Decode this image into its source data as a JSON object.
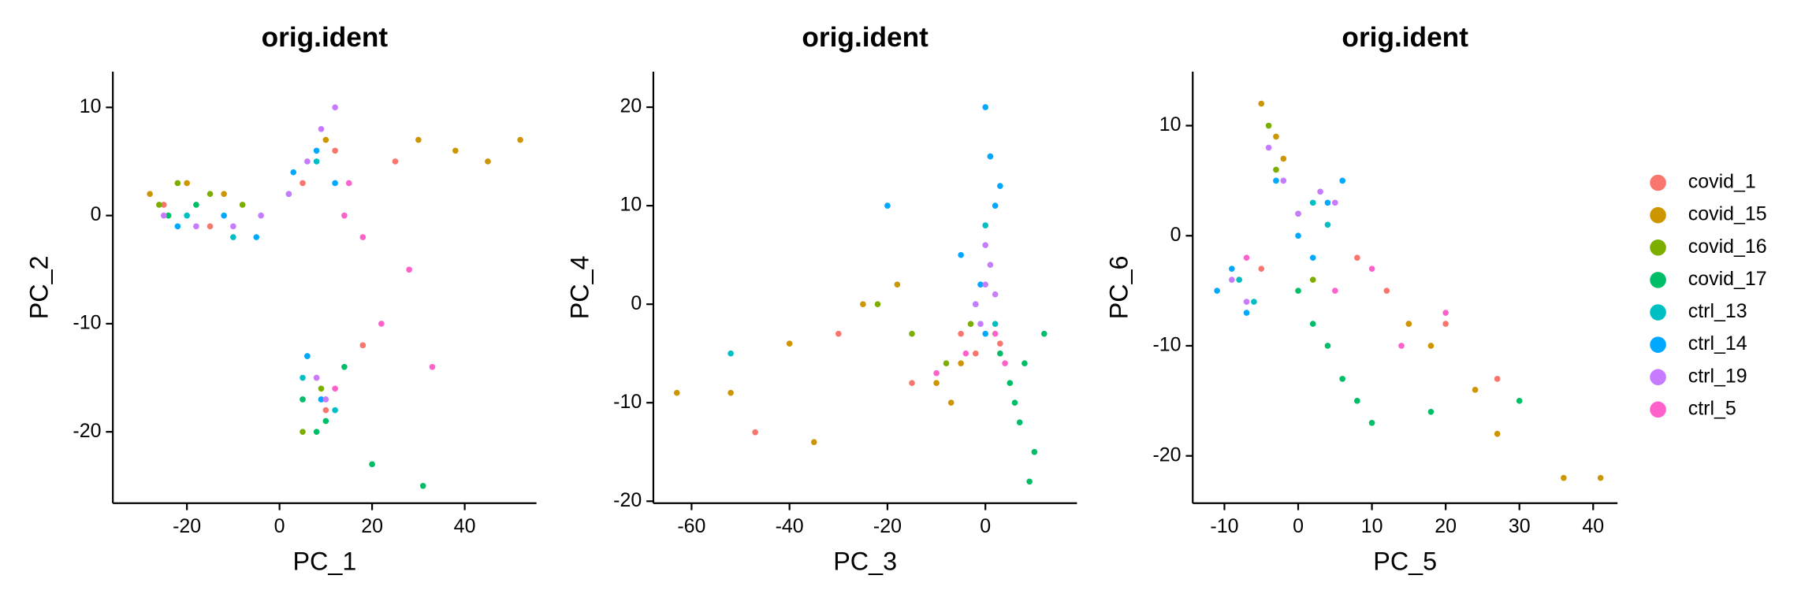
{
  "chart_data": [
    {
      "type": "scatter",
      "title": "orig.ident",
      "x_label": "PC_1",
      "y_label": "PC_2",
      "xlim": [
        -36,
        55.5
      ],
      "ylim": [
        -26.6,
        13.3
      ],
      "xticks": [
        -20,
        0,
        20,
        40
      ],
      "yticks": [
        -20,
        -10,
        0,
        10
      ],
      "series": [
        {
          "name": "covid_1",
          "color": "#F8766D",
          "x": [
            -25,
            -15,
            5,
            12,
            18,
            25,
            8,
            10
          ],
          "y": [
            1,
            -1,
            3,
            6,
            -12,
            5,
            -15,
            -18
          ]
        },
        {
          "name": "covid_15",
          "color": "#CD9600",
          "x": [
            -28,
            -20,
            -12,
            10,
            30,
            45,
            52,
            38
          ],
          "y": [
            2,
            3,
            2,
            7,
            7,
            5,
            7,
            6
          ]
        },
        {
          "name": "covid_16",
          "color": "#7CAE00",
          "x": [
            -26,
            -22,
            -15,
            -8,
            6,
            9,
            5
          ],
          "y": [
            1,
            3,
            2,
            1,
            -13,
            -16,
            -20
          ]
        },
        {
          "name": "covid_17",
          "color": "#00BE67",
          "x": [
            -24,
            -18,
            5,
            8,
            10,
            14,
            20,
            31
          ],
          "y": [
            0,
            1,
            -17,
            -20,
            -19,
            -14,
            -23,
            -25
          ]
        },
        {
          "name": "ctrl_13",
          "color": "#00BFC4",
          "x": [
            -20,
            -10,
            2,
            8,
            5,
            12
          ],
          "y": [
            0,
            -2,
            2,
            5,
            -15,
            -18
          ]
        },
        {
          "name": "ctrl_14",
          "color": "#00A9FF",
          "x": [
            -22,
            -12,
            -5,
            3,
            8,
            12,
            6,
            9
          ],
          "y": [
            -1,
            0,
            -2,
            4,
            6,
            3,
            -13,
            -17
          ]
        },
        {
          "name": "ctrl_19",
          "color": "#C77CFF",
          "x": [
            -25,
            -18,
            -10,
            -4,
            2,
            6,
            9,
            12,
            8,
            10
          ],
          "y": [
            0,
            -1,
            -1,
            0,
            2,
            5,
            8,
            10,
            -15,
            -17
          ]
        },
        {
          "name": "ctrl_5",
          "color": "#FF61CC",
          "x": [
            15,
            18,
            22,
            28,
            33,
            12,
            14
          ],
          "y": [
            3,
            -2,
            -10,
            -5,
            -14,
            -16,
            0
          ]
        }
      ]
    },
    {
      "type": "scatter",
      "title": "orig.ident",
      "x_label": "PC_3",
      "y_label": "PC_4",
      "xlim": [
        -67.8,
        18.7
      ],
      "ylim": [
        -20.2,
        23.6
      ],
      "xticks": [
        -60,
        -40,
        -20,
        0
      ],
      "yticks": [
        -20,
        -10,
        0,
        10,
        20
      ],
      "series": [
        {
          "name": "covid_1",
          "color": "#F8766D",
          "x": [
            -47,
            -30,
            -15,
            -5,
            -2,
            3
          ],
          "y": [
            -13,
            -3,
            -8,
            -3,
            -5,
            -4
          ]
        },
        {
          "name": "covid_15",
          "color": "#CD9600",
          "x": [
            -63,
            -52,
            -40,
            -35,
            -25,
            -18,
            -10,
            -7,
            -5
          ],
          "y": [
            -9,
            -9,
            -4,
            -14,
            0,
            2,
            -8,
            -10,
            -6
          ]
        },
        {
          "name": "covid_16",
          "color": "#7CAE00",
          "x": [
            -22,
            -15,
            -8,
            -3
          ],
          "y": [
            0,
            -3,
            -6,
            -2
          ]
        },
        {
          "name": "covid_17",
          "color": "#00BE67",
          "x": [
            3,
            5,
            7,
            8,
            10,
            12,
            6,
            9
          ],
          "y": [
            -5,
            -8,
            -12,
            -6,
            -15,
            -3,
            -10,
            -18
          ]
        },
        {
          "name": "ctrl_13",
          "color": "#00BFC4",
          "x": [
            -52,
            -2,
            0,
            1,
            2
          ],
          "y": [
            -5,
            0,
            8,
            15,
            -2
          ]
        },
        {
          "name": "ctrl_14",
          "color": "#00A9FF",
          "x": [
            -20,
            -5,
            0,
            1,
            2,
            -1,
            0,
            3
          ],
          "y": [
            10,
            5,
            20,
            15,
            10,
            2,
            -3,
            12
          ]
        },
        {
          "name": "ctrl_19",
          "color": "#C77CFF",
          "x": [
            -2,
            0,
            1,
            2,
            -1,
            0
          ],
          "y": [
            0,
            2,
            4,
            1,
            -2,
            6
          ]
        },
        {
          "name": "ctrl_5",
          "color": "#FF61CC",
          "x": [
            -10,
            -4,
            2,
            4
          ],
          "y": [
            -7,
            -5,
            -3,
            -6
          ]
        }
      ]
    },
    {
      "type": "scatter",
      "title": "orig.ident",
      "x_label": "PC_5",
      "y_label": "PC_6",
      "xlim": [
        -14.3,
        43.3
      ],
      "ylim": [
        -24.3,
        14.9
      ],
      "xticks": [
        -10,
        0,
        10,
        20,
        30,
        40
      ],
      "yticks": [
        -20,
        -10,
        0,
        10
      ],
      "series": [
        {
          "name": "covid_1",
          "color": "#F8766D",
          "x": [
            -5,
            8,
            12,
            15,
            20,
            27
          ],
          "y": [
            -3,
            -2,
            -5,
            -8,
            -8,
            -13
          ]
        },
        {
          "name": "covid_15",
          "color": "#CD9600",
          "x": [
            -5,
            -3,
            -2,
            15,
            18,
            24,
            27,
            36,
            41
          ],
          "y": [
            12,
            9,
            7,
            -8,
            -10,
            -14,
            -18,
            -22,
            -22
          ]
        },
        {
          "name": "covid_16",
          "color": "#7CAE00",
          "x": [
            -4,
            -3,
            0,
            2
          ],
          "y": [
            10,
            6,
            2,
            -4
          ]
        },
        {
          "name": "covid_17",
          "color": "#00BE67",
          "x": [
            0,
            2,
            4,
            6,
            8,
            10,
            18,
            30
          ],
          "y": [
            -5,
            -8,
            -10,
            -13,
            -15,
            -17,
            -16,
            -15
          ]
        },
        {
          "name": "ctrl_13",
          "color": "#00BFC4",
          "x": [
            -8,
            -6,
            2,
            4
          ],
          "y": [
            -4,
            -6,
            3,
            1
          ]
        },
        {
          "name": "ctrl_14",
          "color": "#00A9FF",
          "x": [
            -11,
            -9,
            -7,
            -3,
            0,
            4,
            6,
            2
          ],
          "y": [
            -5,
            -3,
            -7,
            5,
            0,
            3,
            5,
            -2
          ]
        },
        {
          "name": "ctrl_19",
          "color": "#C77CFF",
          "x": [
            -9,
            -7,
            -4,
            -2,
            0,
            3,
            5
          ],
          "y": [
            -4,
            -6,
            8,
            5,
            2,
            4,
            3
          ]
        },
        {
          "name": "ctrl_5",
          "color": "#FF61CC",
          "x": [
            -7,
            5,
            10,
            14,
            20
          ],
          "y": [
            -2,
            -5,
            -3,
            -10,
            -7
          ]
        }
      ]
    }
  ]
}
